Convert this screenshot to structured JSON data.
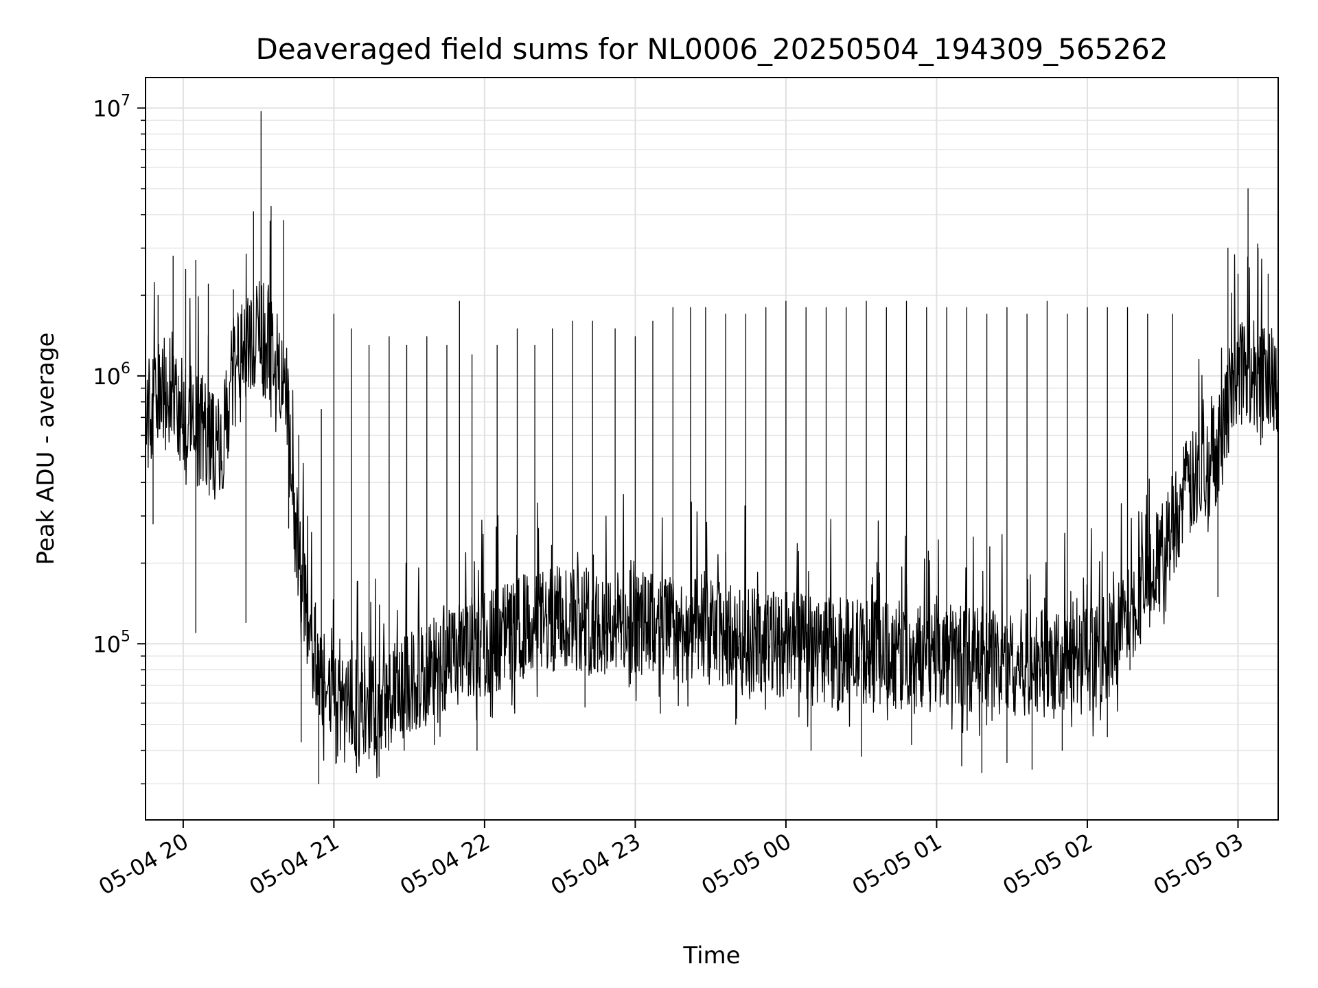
{
  "chart_data": {
    "type": "line",
    "title": "Deaveraged field sums for NL0006_20250504_194309_565262",
    "xlabel": "Time",
    "ylabel": "Peak ADU - average",
    "y_scale": "log",
    "ylim": [
      22000,
      13000000
    ],
    "xlim": [
      "2025-05-04T19:45",
      "2025-05-05T03:16"
    ],
    "x_ticks": [
      {
        "t": "2025-05-04T20:00",
        "label": "05-04 20"
      },
      {
        "t": "2025-05-04T21:00",
        "label": "05-04 21"
      },
      {
        "t": "2025-05-04T22:00",
        "label": "05-04 22"
      },
      {
        "t": "2025-05-04T23:00",
        "label": "05-04 23"
      },
      {
        "t": "2025-05-05T00:00",
        "label": "05-05 00"
      },
      {
        "t": "2025-05-05T01:00",
        "label": "05-05 01"
      },
      {
        "t": "2025-05-05T02:00",
        "label": "05-05 02"
      },
      {
        "t": "2025-05-05T03:00",
        "label": "05-05 03"
      }
    ],
    "y_ticks": [
      {
        "value": 100000,
        "base": "10",
        "exponent": "5"
      },
      {
        "value": 1000000,
        "base": "10",
        "exponent": "6"
      },
      {
        "value": 10000000,
        "base": "10",
        "exponent": "7"
      }
    ],
    "grid": true,
    "line_color": "#000000",
    "series": [
      {
        "x": [
          "2025-05-04T19:45",
          "2025-05-04T19:50",
          "2025-05-04T19:55",
          "2025-05-04T20:00",
          "2025-05-04T20:05",
          "2025-05-04T20:10",
          "2025-05-04T20:15",
          "2025-05-04T20:20",
          "2025-05-04T20:25",
          "2025-05-04T20:30",
          "2025-05-04T20:35",
          "2025-05-04T20:40",
          "2025-05-04T20:45",
          "2025-05-04T20:50",
          "2025-05-04T20:55",
          "2025-05-04T21:00",
          "2025-05-04T21:05",
          "2025-05-04T21:10",
          "2025-05-04T21:15",
          "2025-05-04T21:20",
          "2025-05-04T21:25",
          "2025-05-04T21:30",
          "2025-05-04T21:35",
          "2025-05-04T21:40",
          "2025-05-04T21:45",
          "2025-05-04T21:50",
          "2025-05-04T21:55",
          "2025-05-04T22:00",
          "2025-05-04T22:05",
          "2025-05-04T22:10",
          "2025-05-04T22:15",
          "2025-05-04T22:20",
          "2025-05-04T22:25",
          "2025-05-04T22:30",
          "2025-05-04T22:35",
          "2025-05-04T22:40",
          "2025-05-04T22:45",
          "2025-05-04T22:50",
          "2025-05-04T22:55",
          "2025-05-04T23:00",
          "2025-05-04T23:05",
          "2025-05-04T23:10",
          "2025-05-04T23:15",
          "2025-05-04T23:20",
          "2025-05-04T23:25",
          "2025-05-04T23:30",
          "2025-05-04T23:35",
          "2025-05-04T23:40",
          "2025-05-04T23:45",
          "2025-05-04T23:50",
          "2025-05-04T23:55",
          "2025-05-05T00:00",
          "2025-05-05T00:05",
          "2025-05-05T00:10",
          "2025-05-05T00:15",
          "2025-05-05T00:20",
          "2025-05-05T00:25",
          "2025-05-05T00:30",
          "2025-05-05T00:35",
          "2025-05-05T00:40",
          "2025-05-05T00:45",
          "2025-05-05T00:50",
          "2025-05-05T00:55",
          "2025-05-05T01:00",
          "2025-05-05T01:05",
          "2025-05-05T01:10",
          "2025-05-05T01:15",
          "2025-05-05T01:20",
          "2025-05-05T01:25",
          "2025-05-05T01:30",
          "2025-05-05T01:35",
          "2025-05-05T01:40",
          "2025-05-05T01:45",
          "2025-05-05T01:50",
          "2025-05-05T01:55",
          "2025-05-05T02:00",
          "2025-05-05T02:05",
          "2025-05-05T02:10",
          "2025-05-05T02:15",
          "2025-05-05T02:20",
          "2025-05-05T02:25",
          "2025-05-05T02:30",
          "2025-05-05T02:35",
          "2025-05-05T02:40",
          "2025-05-05T02:45",
          "2025-05-05T02:50",
          "2025-05-05T02:55",
          "2025-05-05T03:00",
          "2025-05-05T03:05",
          "2025-05-05T03:10",
          "2025-05-05T03:15"
        ],
        "y": [
          700000,
          800000,
          900000,
          750000,
          650000,
          600000,
          500000,
          1000000,
          1200000,
          1400000,
          1300000,
          1100000,
          250000,
          110000,
          75000,
          60000,
          55000,
          55000,
          58000,
          60000,
          65000,
          70000,
          75000,
          80000,
          85000,
          90000,
          95000,
          100000,
          105000,
          110000,
          115000,
          120000,
          120000,
          125000,
          125000,
          125000,
          120000,
          120000,
          120000,
          120000,
          118000,
          115000,
          115000,
          112000,
          110000,
          110000,
          108000,
          105000,
          105000,
          102000,
          100000,
          100000,
          98000,
          96000,
          95000,
          95000,
          94000,
          94000,
          93000,
          92000,
          92000,
          90000,
          90000,
          90000,
          90000,
          88000,
          88000,
          86000,
          86000,
          85000,
          85000,
          85000,
          84000,
          84000,
          85000,
          88000,
          92000,
          100000,
          120000,
          150000,
          180000,
          220000,
          300000,
          380000,
          420000,
          500000,
          700000,
          1100000,
          1050000,
          1000000,
          1000000
        ]
      }
    ],
    "spikes": [
      {
        "t": "2025-05-04T19:50",
        "y": 2000000
      },
      {
        "t": "2025-05-04T19:56",
        "y": 2800000
      },
      {
        "t": "2025-05-04T20:01",
        "y": 2500000
      },
      {
        "t": "2025-05-04T20:05",
        "y": 2700000
      },
      {
        "t": "2025-05-04T20:10",
        "y": 2200000
      },
      {
        "t": "2025-05-04T20:20",
        "y": 2100000
      },
      {
        "t": "2025-05-04T20:28",
        "y": 4100000
      },
      {
        "t": "2025-05-04T20:31",
        "y": 9700000
      },
      {
        "t": "2025-05-04T20:35",
        "y": 4300000
      },
      {
        "t": "2025-05-04T20:40",
        "y": 3800000
      },
      {
        "t": "2025-05-04T20:46",
        "y": 600000
      },
      {
        "t": "2025-05-04T20:55",
        "y": 750000
      },
      {
        "t": "2025-05-04T21:00",
        "y": 1700000
      },
      {
        "t": "2025-05-04T21:07",
        "y": 1500000
      },
      {
        "t": "2025-05-04T21:14",
        "y": 1300000
      },
      {
        "t": "2025-05-04T21:22",
        "y": 1400000
      },
      {
        "t": "2025-05-04T21:29",
        "y": 1300000
      },
      {
        "t": "2025-05-04T21:37",
        "y": 1400000
      },
      {
        "t": "2025-05-04T21:45",
        "y": 1300000
      },
      {
        "t": "2025-05-04T21:50",
        "y": 1900000
      },
      {
        "t": "2025-05-04T21:55",
        "y": 1200000
      },
      {
        "t": "2025-05-04T22:05",
        "y": 1300000
      },
      {
        "t": "2025-05-04T22:13",
        "y": 1500000
      },
      {
        "t": "2025-05-04T22:20",
        "y": 1300000
      },
      {
        "t": "2025-05-04T22:27",
        "y": 1500000
      },
      {
        "t": "2025-05-04T22:35",
        "y": 1600000
      },
      {
        "t": "2025-05-04T22:43",
        "y": 1600000
      },
      {
        "t": "2025-05-04T22:52",
        "y": 1500000
      },
      {
        "t": "2025-05-04T23:00",
        "y": 1400000
      },
      {
        "t": "2025-05-04T23:07",
        "y": 1600000
      },
      {
        "t": "2025-05-04T23:15",
        "y": 1800000
      },
      {
        "t": "2025-05-04T23:22",
        "y": 1800000
      },
      {
        "t": "2025-05-04T23:28",
        "y": 1800000
      },
      {
        "t": "2025-05-04T23:36",
        "y": 1700000
      },
      {
        "t": "2025-05-04T23:44",
        "y": 1700000
      },
      {
        "t": "2025-05-04T23:52",
        "y": 1800000
      },
      {
        "t": "2025-05-05T00:00",
        "y": 1900000
      },
      {
        "t": "2025-05-05T00:08",
        "y": 1800000
      },
      {
        "t": "2025-05-05T00:16",
        "y": 1800000
      },
      {
        "t": "2025-05-05T00:24",
        "y": 1800000
      },
      {
        "t": "2025-05-05T00:32",
        "y": 1900000
      },
      {
        "t": "2025-05-05T00:40",
        "y": 1800000
      },
      {
        "t": "2025-05-05T00:48",
        "y": 1900000
      },
      {
        "t": "2025-05-05T00:56",
        "y": 1800000
      },
      {
        "t": "2025-05-05T01:04",
        "y": 1800000
      },
      {
        "t": "2025-05-05T01:12",
        "y": 1800000
      },
      {
        "t": "2025-05-05T01:20",
        "y": 1700000
      },
      {
        "t": "2025-05-05T01:28",
        "y": 1800000
      },
      {
        "t": "2025-05-05T01:36",
        "y": 1700000
      },
      {
        "t": "2025-05-05T01:44",
        "y": 1900000
      },
      {
        "t": "2025-05-05T01:52",
        "y": 1700000
      },
      {
        "t": "2025-05-05T02:00",
        "y": 1800000
      },
      {
        "t": "2025-05-05T02:08",
        "y": 1800000
      },
      {
        "t": "2025-05-05T02:16",
        "y": 1800000
      },
      {
        "t": "2025-05-05T02:24",
        "y": 1700000
      },
      {
        "t": "2025-05-05T02:34",
        "y": 1700000
      },
      {
        "t": "2025-05-05T02:56",
        "y": 3000000
      },
      {
        "t": "2025-05-05T03:00",
        "y": 2400000
      },
      {
        "t": "2025-05-05T03:04",
        "y": 5000000
      },
      {
        "t": "2025-05-05T03:08",
        "y": 3000000
      },
      {
        "t": "2025-05-05T03:12",
        "y": 2400000
      }
    ],
    "dips": [
      {
        "t": "2025-05-04T19:48",
        "y": 280000
      },
      {
        "t": "2025-05-04T20:05",
        "y": 110000
      },
      {
        "t": "2025-05-04T20:25",
        "y": 120000
      },
      {
        "t": "2025-05-04T20:42",
        "y": 270000
      },
      {
        "t": "2025-05-04T20:47",
        "y": 43000
      },
      {
        "t": "2025-05-04T20:54",
        "y": 30000
      },
      {
        "t": "2025-05-04T21:01",
        "y": 36000
      },
      {
        "t": "2025-05-04T21:09",
        "y": 33000
      },
      {
        "t": "2025-05-04T21:18",
        "y": 32000
      },
      {
        "t": "2025-05-04T21:28",
        "y": 40000
      },
      {
        "t": "2025-05-04T21:40",
        "y": 42000
      },
      {
        "t": "2025-05-04T21:57",
        "y": 40000
      },
      {
        "t": "2025-05-04T22:12",
        "y": 55000
      },
      {
        "t": "2025-05-04T22:40",
        "y": 58000
      },
      {
        "t": "2025-05-04T23:10",
        "y": 55000
      },
      {
        "t": "2025-05-04T23:40",
        "y": 50000
      },
      {
        "t": "2025-05-05T00:10",
        "y": 40000
      },
      {
        "t": "2025-05-05T00:30",
        "y": 38000
      },
      {
        "t": "2025-05-05T00:50",
        "y": 42000
      },
      {
        "t": "2025-05-05T01:10",
        "y": 35000
      },
      {
        "t": "2025-05-05T01:18",
        "y": 33000
      },
      {
        "t": "2025-05-05T01:28",
        "y": 36000
      },
      {
        "t": "2025-05-05T01:38",
        "y": 34000
      },
      {
        "t": "2025-05-05T01:50",
        "y": 40000
      },
      {
        "t": "2025-05-05T02:08",
        "y": 45000
      },
      {
        "t": "2025-05-05T02:17",
        "y": 80000
      },
      {
        "t": "2025-05-05T02:52",
        "y": 150000
      }
    ]
  }
}
